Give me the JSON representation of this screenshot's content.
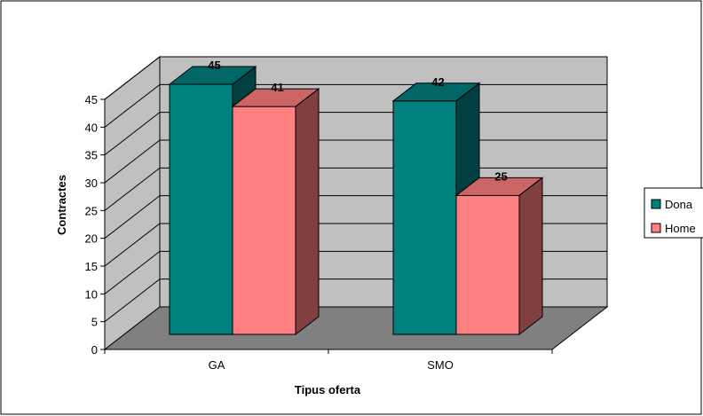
{
  "chart_data": {
    "type": "bar",
    "style": "3d-clustered-column",
    "categories": [
      "GA",
      "SMO"
    ],
    "series": [
      {
        "name": "Dona",
        "values": [
          45,
          42
        ]
      },
      {
        "name": "Home",
        "values": [
          41,
          25
        ]
      }
    ],
    "data_labels": [
      [
        "45",
        "42"
      ],
      [
        "41",
        "25"
      ]
    ],
    "xlabel": "Tipus oferta",
    "ylabel": "Contractes",
    "ylim": [
      0,
      45
    ],
    "yticks": [
      "0",
      "5",
      "10",
      "15",
      "20",
      "25",
      "30",
      "35",
      "40",
      "45"
    ],
    "grid": true,
    "legend_position": "right",
    "colors": {
      "dona_front": "#007F7F",
      "dona_side": "#004040",
      "dona_top": "#006666",
      "home_front": "#FF8080",
      "home_side": "#804040",
      "home_top": "#CC6666",
      "wall": "#C0C0C0",
      "floor": "#808080"
    }
  }
}
